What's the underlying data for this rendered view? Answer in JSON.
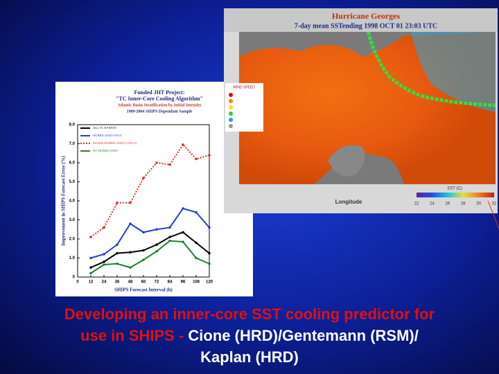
{
  "slide": {
    "chart": {
      "type": "line",
      "title_lines": [
        "Funded JHT Project:",
        "\"TC Inner-Core Cooling Algorithm\"",
        "Atlantic Basin Stratification by Initial Intensity",
        "1989-2004 SHIPS Dependant Sample"
      ],
      "ylabel": "Improvement in SHIPS Forecast Error (%)",
      "xlabel": "SHIPS Forecast Interval (h)",
      "xlim": [
        0,
        120
      ],
      "xticks": [
        0,
        12,
        24,
        36,
        48,
        60,
        72,
        84,
        96,
        108,
        120
      ],
      "ylim": [
        0,
        8
      ],
      "yticks": [
        0,
        {
          "value": 1,
          "label": "1.0"
        },
        {
          "value": 2,
          "label": "2.0"
        },
        {
          "value": 3,
          "label": "3.0"
        },
        {
          "value": 4,
          "label": "4.0"
        },
        {
          "value": 5,
          "label": "5.0"
        },
        {
          "value": 6,
          "label": "6.0"
        },
        {
          "value": 7,
          "label": "7.0"
        },
        {
          "value": 8,
          "label": "8.0"
        }
      ],
      "x": [
        12,
        24,
        36,
        48,
        60,
        72,
        84,
        96,
        108,
        120
      ],
      "series": [
        {
          "name": "ALL TC EVENTS",
          "color": "#000000",
          "values": [
            0.5,
            0.8,
            1.25,
            1.3,
            1.4,
            1.7,
            2.1,
            2.35,
            1.8,
            1.25
          ]
        },
        {
          "name": "HURRICANES ONLY",
          "color": "#1f3fd0",
          "values": [
            1.0,
            1.2,
            1.7,
            2.8,
            2.35,
            2.5,
            2.6,
            3.6,
            3.4,
            2.6
          ]
        },
        {
          "name": "MAJOR HURRICANES (CAT4,5)",
          "color": "#e03020",
          "dashed": true,
          "values": [
            2.1,
            2.6,
            3.9,
            3.9,
            5.2,
            6.0,
            5.9,
            6.95,
            6.2,
            6.4
          ]
        },
        {
          "name": "NO HURRICANES",
          "color": "#208030",
          "values": [
            0.2,
            0.65,
            0.7,
            0.5,
            0.9,
            1.35,
            1.9,
            1.85,
            1.0,
            0.7
          ]
        }
      ]
    },
    "map": {
      "title": "Hurricane Georges",
      "subtitle": "7-day mean SSTending 1998 OCT 01 23:03 UTC",
      "legend_title": "WIND SPEED",
      "xlabel": "Longitude",
      "colorbar_label": "SST (C)",
      "colorbar_lim": [
        22,
        32
      ],
      "colorbar_ticks": [
        22,
        24,
        26,
        28,
        30,
        32
      ]
    },
    "caption": {
      "red_line1": "Developing an inner-core SST cooling predictor for",
      "red_line2": "use in SHIPS - ",
      "white_line2": "Cione (HRD)/Gentemann (RSM)/",
      "white_line3": "Kaplan (HRD)"
    }
  }
}
